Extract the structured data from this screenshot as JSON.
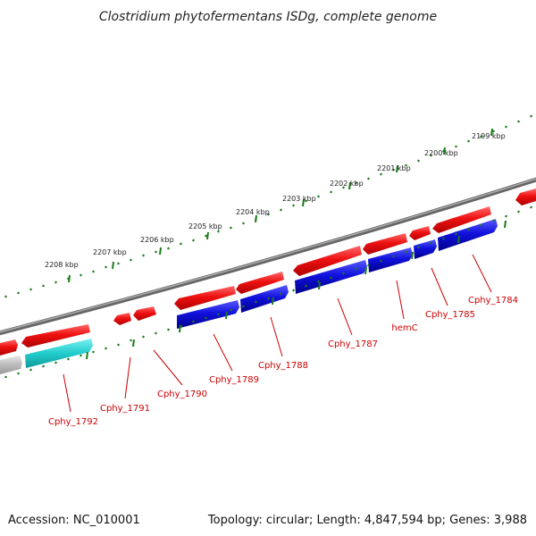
{
  "title": "Clostridium phytofermentans ISDg, complete genome",
  "footer": {
    "accession": "Accession: NC_010001",
    "summary": "Topology: circular; Length: 4,847,594 bp; Genes: 3,988"
  },
  "kbp_labels": [
    "2199 kbp",
    "2200 kbp",
    "2201 kbp",
    "2202 kbp",
    "2203 kbp",
    "2204 kbp",
    "2205 kbp",
    "2206 kbp",
    "2207 kbp",
    "2208 kbp"
  ],
  "gene_labels": [
    "Cphy_1784",
    "Cphy_1785",
    "hemC",
    "Cphy_1787",
    "Cphy_1788",
    "Cphy_1789",
    "Cphy_1790",
    "Cphy_1791",
    "Cphy_1792"
  ],
  "colors": {
    "strand_plus": "#ee1111",
    "strand_minus": "#1111dd",
    "cyan_feature": "#22cccc",
    "grey_feature": "#bbbbbb",
    "backbone": "#777777",
    "ticks": "#1a7a1a",
    "label_red": "#cc0000"
  }
}
